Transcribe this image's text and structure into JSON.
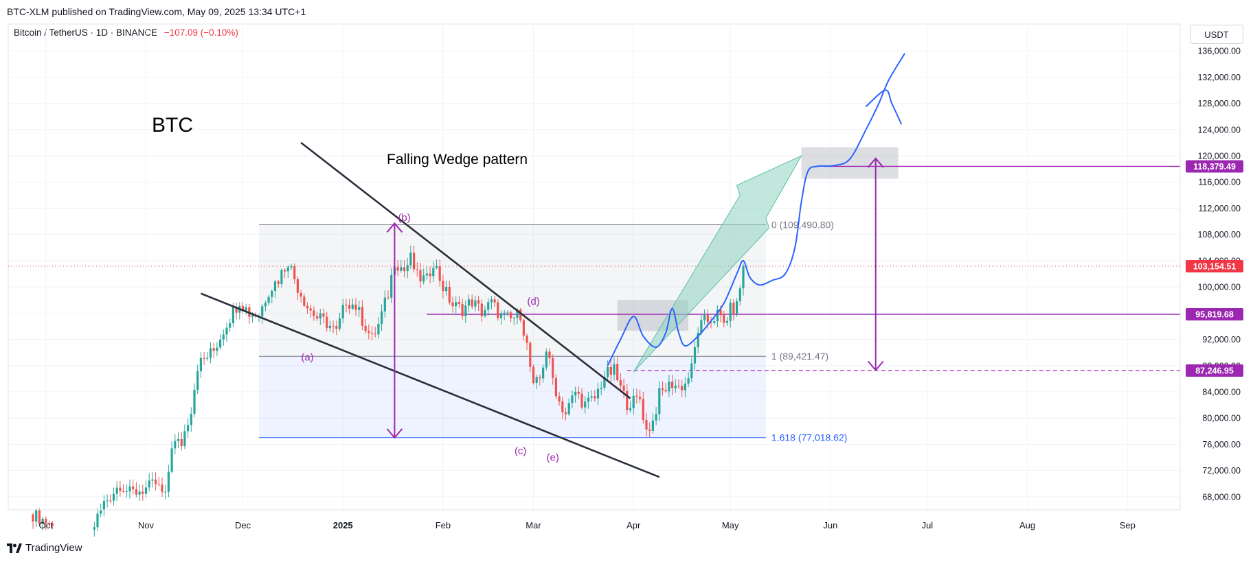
{
  "header": {
    "publisher": "BTC-XLM published on TradingView.com, May 09, 2025 13:34 UTC+1",
    "symbol": "Bitcoin / TetherUS · 1D · BINANCE",
    "change": "−107.09 (−0.10%)",
    "currency": "USDT"
  },
  "footer": {
    "brand": "TradingView"
  },
  "colors": {
    "up": "#26a69a",
    "down": "#ef5350",
    "purple": "#9c27b0",
    "blue_path": "#2962ff",
    "price_red": "#f23645",
    "fib_blue": "#2962ff",
    "arrow_teal": "#8fd3c1"
  },
  "chart_data": {
    "type": "candlestick",
    "title": "BTC",
    "pattern_label": "Falling Wedge pattern",
    "xlabel": "",
    "ylabel": "USDT",
    "ylim": [
      66000,
      138000
    ],
    "y_ticks": [
      68000,
      72000,
      76000,
      80000,
      84000,
      88000,
      92000,
      96000,
      100000,
      104000,
      108000,
      112000,
      116000,
      120000,
      124000,
      128000,
      132000,
      136000
    ],
    "y_tick_labels": [
      "68,000.00",
      "72,000.00",
      "76,000.00",
      "80,000.00",
      "84,000.00",
      "88,000.00",
      "92,000.00",
      "96,000.00",
      "100,000.00",
      "104,000.00",
      "108,000.00",
      "112,000.00",
      "116,000.00",
      "120,000.00",
      "124,000.00",
      "128,000.00",
      "132,000.00",
      "136,000.00"
    ],
    "x_start": "2024-09-27",
    "x_end": "2025-10-12",
    "x_ticks": [
      {
        "label": "Oct",
        "day": 4,
        "bold": false
      },
      {
        "label": "Nov",
        "day": 35,
        "bold": false
      },
      {
        "label": "Dec",
        "day": 65,
        "bold": false
      },
      {
        "label": "2025",
        "day": 96,
        "bold": true
      },
      {
        "label": "Feb",
        "day": 127,
        "bold": false
      },
      {
        "label": "Mar",
        "day": 155,
        "bold": false
      },
      {
        "label": "Apr",
        "day": 186,
        "bold": false
      },
      {
        "label": "May",
        "day": 216,
        "bold": false
      },
      {
        "label": "Jun",
        "day": 247,
        "bold": false
      },
      {
        "label": "Jul",
        "day": 277,
        "bold": false
      },
      {
        "label": "Aug",
        "day": 308,
        "bold": false
      },
      {
        "label": "Sep",
        "day": 339,
        "bold": false
      }
    ],
    "close_anchors": [
      [
        0,
        65300
      ],
      [
        5,
        64000
      ],
      [
        9,
        61000
      ],
      [
        16,
        60500
      ],
      [
        22,
        67000
      ],
      [
        27,
        70000
      ],
      [
        30,
        68500
      ],
      [
        36,
        69400
      ],
      [
        38,
        70000
      ],
      [
        41,
        67800
      ],
      [
        43,
        76000
      ],
      [
        46,
        76200
      ],
      [
        49,
        81500
      ],
      [
        51,
        88000
      ],
      [
        56,
        90300
      ],
      [
        60,
        94500
      ],
      [
        64,
        98000
      ],
      [
        67,
        96000
      ],
      [
        70,
        95800
      ],
      [
        73,
        99500
      ],
      [
        76,
        101200
      ],
      [
        79,
        104000
      ],
      [
        82,
        100000
      ],
      [
        85,
        97000
      ],
      [
        88,
        95300
      ],
      [
        91,
        94500
      ],
      [
        94,
        93000
      ],
      [
        97,
        98000
      ],
      [
        100,
        97000
      ],
      [
        103,
        94000
      ],
      [
        105,
        92000
      ],
      [
        107,
        94200
      ],
      [
        110,
        99000
      ],
      [
        112,
        104000
      ],
      [
        115,
        102500
      ],
      [
        117,
        104300
      ],
      [
        119,
        101500
      ],
      [
        122,
        101000
      ],
      [
        124,
        104000
      ],
      [
        127,
        100000
      ],
      [
        130,
        97200
      ],
      [
        133,
        96600
      ],
      [
        136,
        97800
      ],
      [
        139,
        96200
      ],
      [
        142,
        97500
      ],
      [
        145,
        95500
      ],
      [
        148,
        95000
      ],
      [
        151,
        96000
      ],
      [
        153,
        91000
      ],
      [
        155,
        84500
      ],
      [
        157,
        86000
      ],
      [
        159,
        90500
      ],
      [
        161,
        86000
      ],
      [
        163,
        82500
      ],
      [
        165,
        80700
      ],
      [
        168,
        84000
      ],
      [
        171,
        82000
      ],
      [
        174,
        83000
      ],
      [
        177,
        86500
      ],
      [
        180,
        87200
      ],
      [
        182,
        84500
      ],
      [
        184,
        82300
      ],
      [
        186,
        82500
      ],
      [
        188,
        83000
      ],
      [
        190,
        78000
      ],
      [
        192,
        79500
      ],
      [
        194,
        83500
      ],
      [
        196,
        84500
      ],
      [
        198,
        85300
      ],
      [
        200,
        84700
      ],
      [
        202,
        85200
      ],
      [
        204,
        87500
      ],
      [
        206,
        93500
      ],
      [
        208,
        94700
      ],
      [
        210,
        95000
      ],
      [
        212,
        95800
      ],
      [
        214,
        94300
      ],
      [
        216,
        96500
      ],
      [
        218,
        97000
      ],
      [
        220,
        103154
      ]
    ],
    "price_labels": [
      {
        "value": 118379.49,
        "text": "118,379.49",
        "color": "#9c27b0"
      },
      {
        "value": 103154.51,
        "text": "103,154.51",
        "color": "#f23645"
      },
      {
        "value": 95819.68,
        "text": "95,819.68",
        "color": "#9c27b0"
      },
      {
        "value": 87246.95,
        "text": "87,246.95",
        "color": "#9c27b0"
      }
    ],
    "fib_levels": [
      {
        "ratio": "0",
        "value": 109490.8,
        "text": "0 (109,490.80)",
        "color": "#787b86"
      },
      {
        "ratio": "1",
        "value": 89421.47,
        "text": "1 (89,421.47)",
        "color": "#787b86"
      },
      {
        "ratio": "1.618",
        "value": 77018.62,
        "text": "1.618 (77,018.62)",
        "color": "#2962ff"
      }
    ],
    "fib_range_days": [
      70,
      227
    ],
    "wedge_upper": [
      [
        83,
        122000
      ],
      [
        185,
        83000
      ]
    ],
    "wedge_lower": [
      [
        52,
        99000
      ],
      [
        194,
        71000
      ]
    ],
    "wave_labels": [
      {
        "text": "(a)",
        "day": 85,
        "value": 89300
      },
      {
        "text": "(b)",
        "day": 115,
        "value": 110600
      },
      {
        "text": "(c)",
        "day": 151,
        "value": 75000
      },
      {
        "text": "(d)",
        "day": 155,
        "value": 97800
      },
      {
        "text": "(e)",
        "day": 161,
        "value": 74000
      }
    ],
    "measured_move_left": {
      "day": 112,
      "top": 109700,
      "bottom": 77000
    },
    "measured_move_right": {
      "day": 261,
      "top": 119600,
      "bottom": 87300
    },
    "resistance_line": {
      "value": 95819.68,
      "from_day": 122
    },
    "target_line": {
      "value": 118379.49,
      "from_day": 245
    },
    "dashed_line": {
      "value": 87246.95,
      "from_day": 184
    },
    "resistance_box": {
      "days": [
        181,
        203
      ],
      "top": 98000,
      "bottom": 93300
    },
    "target_box": {
      "days": [
        238,
        268
      ],
      "top": 121300,
      "bottom": 116500
    },
    "projection_path": [
      [
        178,
        88000
      ],
      [
        182,
        92000
      ],
      [
        186,
        95500
      ],
      [
        189,
        92500
      ],
      [
        193,
        90800
      ],
      [
        196,
        93000
      ],
      [
        198,
        96700
      ],
      [
        200,
        93000
      ],
      [
        202,
        91000
      ],
      [
        206,
        92500
      ],
      [
        210,
        94800
      ],
      [
        214,
        97500
      ],
      [
        218,
        102000
      ],
      [
        220,
        104000
      ],
      [
        222,
        101500
      ],
      [
        225,
        100300
      ],
      [
        229,
        101000
      ],
      [
        233,
        102000
      ],
      [
        236,
        106000
      ],
      [
        238,
        113000
      ],
      [
        240,
        117600
      ],
      [
        243,
        118400
      ],
      [
        248,
        118500
      ],
      [
        253,
        119500
      ],
      [
        258,
        124000
      ],
      [
        262,
        128000
      ],
      [
        265,
        131500
      ],
      [
        270,
        135600
      ]
    ],
    "projection_branch": [
      [
        258,
        127500
      ],
      [
        264,
        130000
      ],
      [
        266,
        128000
      ],
      [
        269,
        124800
      ]
    ],
    "teal_arrow": [
      [
        186,
        87000
      ],
      [
        228,
        109000
      ],
      [
        227,
        110500
      ],
      [
        238,
        120000
      ],
      [
        218,
        115500
      ],
      [
        219,
        114000
      ],
      [
        189,
        89500
      ]
    ]
  }
}
